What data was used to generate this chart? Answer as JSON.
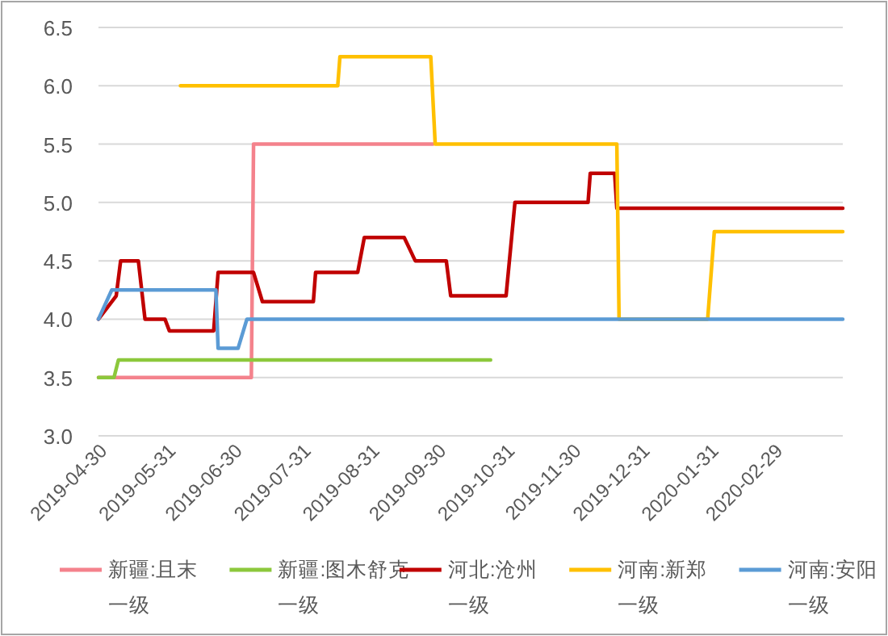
{
  "chart_data": {
    "type": "step",
    "xlim": [
      "2019-04-30",
      "2020-03-31"
    ],
    "xticks": [
      "2019-04-30",
      "2019-05-31",
      "2019-06-30",
      "2019-07-31",
      "2019-08-31",
      "2019-09-30",
      "2019-10-31",
      "2019-11-30",
      "2019-12-31",
      "2020-01-31",
      "2020-02-29"
    ],
    "ylim": [
      3.0,
      6.5
    ],
    "yticks": [
      {
        "value": 3.0,
        "label": "3.0"
      },
      {
        "value": 3.5,
        "label": "3.5"
      },
      {
        "value": 4.0,
        "label": "4.0"
      },
      {
        "value": 4.5,
        "label": "4.5"
      },
      {
        "value": 5.0,
        "label": "5.0"
      },
      {
        "value": 5.5,
        "label": "5.5"
      },
      {
        "value": 6.0,
        "label": "6.0"
      },
      {
        "value": 6.5,
        "label": "6.5"
      }
    ],
    "grid": "y",
    "legend": "bottom",
    "series": [
      {
        "name": "新疆:且末一级",
        "color": "#f4828c",
        "x": [
          "2019-04-30",
          "2019-07-08",
          "2019-07-09",
          "2019-09-28"
        ],
        "values": [
          3.5,
          3.5,
          5.5,
          5.5
        ]
      },
      {
        "name": "新疆:图木舒克一级",
        "color": "#8cc83c",
        "x": [
          "2019-04-30",
          "2019-05-07",
          "2019-05-09",
          "2019-10-24"
        ],
        "values": [
          3.5,
          3.5,
          3.65,
          3.65
        ]
      },
      {
        "name": "河北:沧州一级",
        "color": "#c00000",
        "x": [
          "2019-04-30",
          "2019-05-08",
          "2019-05-10",
          "2019-05-18",
          "2019-05-21",
          "2019-05-30",
          "2019-06-01",
          "2019-06-21",
          "2019-06-23",
          "2019-07-09",
          "2019-07-13",
          "2019-08-05",
          "2019-08-06",
          "2019-08-25",
          "2019-08-28",
          "2019-09-15",
          "2019-09-20",
          "2019-10-04",
          "2019-10-06",
          "2019-10-31",
          "2019-11-04",
          "2019-12-07",
          "2019-12-08",
          "2019-12-19",
          "2019-12-20",
          "2020-03-31"
        ],
        "values": [
          4.0,
          4.2,
          4.5,
          4.5,
          4.0,
          4.0,
          3.9,
          3.9,
          4.4,
          4.4,
          4.15,
          4.15,
          4.4,
          4.4,
          4.7,
          4.7,
          4.5,
          4.5,
          4.2,
          4.2,
          5.0,
          5.0,
          5.25,
          5.25,
          4.95,
          4.95
        ]
      },
      {
        "name": "河南:新郑一级",
        "color": "#ffc000",
        "x": [
          "2019-06-06",
          "2019-08-16",
          "2019-08-17",
          "2019-09-27",
          "2019-09-29",
          "2019-12-20",
          "2019-12-21",
          "2020-01-30",
          "2020-02-02",
          "2020-03-31"
        ],
        "values": [
          6.0,
          6.0,
          6.25,
          6.25,
          5.5,
          5.5,
          4.0,
          4.0,
          4.75,
          4.75
        ]
      },
      {
        "name": "河南:安阳一级",
        "color": "#5b9bd5",
        "x": [
          "2019-04-30",
          "2019-05-06",
          "2019-06-22",
          "2019-06-23",
          "2019-07-02",
          "2019-07-06",
          "2020-03-31"
        ],
        "values": [
          4.0,
          4.25,
          4.25,
          3.75,
          3.75,
          4.0,
          4.0
        ]
      }
    ]
  }
}
